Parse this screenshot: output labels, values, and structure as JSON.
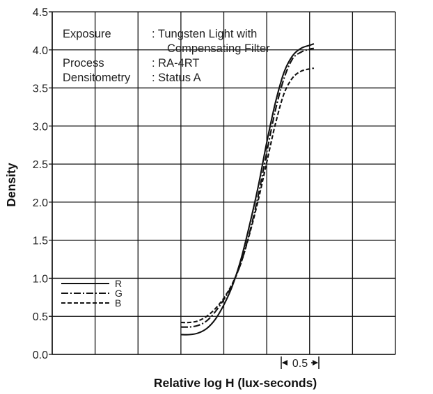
{
  "chart_data": {
    "type": "line",
    "xlabel": "Relative log H (lux-seconds)",
    "ylabel": "Density",
    "ylim": [
      0.0,
      4.5
    ],
    "y_ticks": [
      "0.0",
      "0.5",
      "1.0",
      "1.5",
      "2.0",
      "2.5",
      "3.0",
      "3.5",
      "4.0",
      "4.5"
    ],
    "xlim": [
      0.0,
      4.0
    ],
    "x_scale_note": "0.5",
    "grid": true,
    "legend_position": "left",
    "info": {
      "exposure_label": "Exposure",
      "exposure_value": ": Tungsten Light with",
      "exposure_value_2": "Compensating Filter",
      "process_label": "Process",
      "process_value": ": RA-4RT",
      "densitometry_label": "Densitometry",
      "densitometry_value": ": Status A"
    },
    "series": [
      {
        "name": "R",
        "color": "#111111",
        "dash": "solid",
        "points": [
          [
            1.5,
            0.26
          ],
          [
            1.6,
            0.26
          ],
          [
            1.7,
            0.28
          ],
          [
            1.8,
            0.34
          ],
          [
            1.9,
            0.46
          ],
          [
            2.0,
            0.65
          ],
          [
            2.1,
            0.9
          ],
          [
            2.2,
            1.25
          ],
          [
            2.3,
            1.7
          ],
          [
            2.4,
            2.2
          ],
          [
            2.5,
            2.78
          ],
          [
            2.6,
            3.3
          ],
          [
            2.7,
            3.7
          ],
          [
            2.8,
            3.92
          ],
          [
            2.9,
            4.02
          ],
          [
            3.0,
            4.06
          ],
          [
            3.05,
            4.08
          ]
        ]
      },
      {
        "name": "G",
        "color": "#111111",
        "dash": "dashdot",
        "points": [
          [
            1.5,
            0.36
          ],
          [
            1.6,
            0.36
          ],
          [
            1.7,
            0.38
          ],
          [
            1.8,
            0.44
          ],
          [
            1.9,
            0.56
          ],
          [
            2.0,
            0.72
          ],
          [
            2.1,
            0.92
          ],
          [
            2.2,
            1.2
          ],
          [
            2.3,
            1.6
          ],
          [
            2.4,
            2.08
          ],
          [
            2.5,
            2.65
          ],
          [
            2.6,
            3.2
          ],
          [
            2.7,
            3.62
          ],
          [
            2.8,
            3.88
          ],
          [
            2.9,
            3.97
          ],
          [
            3.0,
            4.01
          ],
          [
            3.05,
            4.02
          ]
        ]
      },
      {
        "name": "B",
        "color": "#111111",
        "dash": "dashed",
        "points": [
          [
            1.5,
            0.42
          ],
          [
            1.6,
            0.42
          ],
          [
            1.7,
            0.44
          ],
          [
            1.8,
            0.5
          ],
          [
            1.9,
            0.6
          ],
          [
            2.0,
            0.74
          ],
          [
            2.1,
            0.93
          ],
          [
            2.2,
            1.2
          ],
          [
            2.3,
            1.58
          ],
          [
            2.4,
            2.02
          ],
          [
            2.5,
            2.52
          ],
          [
            2.6,
            3.02
          ],
          [
            2.7,
            3.42
          ],
          [
            2.8,
            3.63
          ],
          [
            2.9,
            3.72
          ],
          [
            3.0,
            3.75
          ],
          [
            3.05,
            3.76
          ]
        ]
      }
    ]
  }
}
